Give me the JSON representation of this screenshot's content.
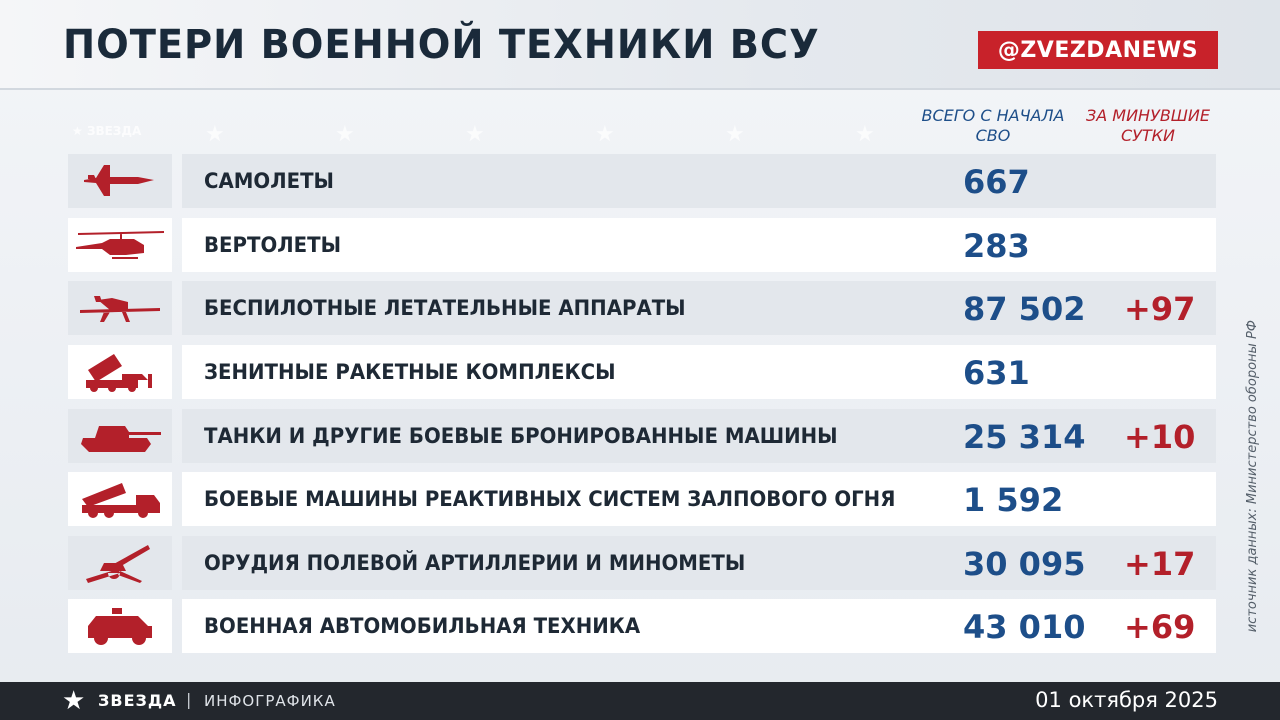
{
  "header": {
    "title": "ПОТЕРИ ВОЕННОЙ ТЕХНИКИ ВСУ",
    "badge": "@ZVEZDANEWS"
  },
  "watermark": "ЗВЕЗДА",
  "columns": {
    "total": "ВСЕГО С НАЧАЛА СВО",
    "daily": "ЗА МИНУВШИЕ СУТКИ"
  },
  "rows": [
    {
      "icon": "aircraft-icon",
      "label": "САМОЛЕТЫ",
      "total": "667",
      "daily": ""
    },
    {
      "icon": "helicopter-icon",
      "label": "ВЕРТОЛЕТЫ",
      "total": "283",
      "daily": ""
    },
    {
      "icon": "drone-icon",
      "label": "БЕСПИЛОТНЫЕ ЛЕТАТЕЛЬНЫЕ АППАРАТЫ",
      "total": "87 502",
      "daily": "+97"
    },
    {
      "icon": "air-defense-icon",
      "label": "ЗЕНИТНЫЕ РАКЕТНЫЕ КОМПЛЕКСЫ",
      "total": "631",
      "daily": ""
    },
    {
      "icon": "tank-icon",
      "label": "ТАНКИ И ДРУГИЕ БОЕВЫЕ БРОНИРОВАННЫЕ МАШИНЫ",
      "total": "25 314",
      "daily": "+10"
    },
    {
      "icon": "rocket-launcher-icon",
      "label": "БОЕВЫЕ МАШИНЫ РЕАКТИВНЫХ СИСТЕМ ЗАЛПОВОГО ОГНЯ",
      "total": "1 592",
      "daily": ""
    },
    {
      "icon": "artillery-icon",
      "label": "ОРУДИЯ ПОЛЕВОЙ АРТИЛЛЕРИИ И МИНОМЕТЫ",
      "total": "30 095",
      "daily": "+17"
    },
    {
      "icon": "military-vehicle-icon",
      "label": "ВОЕННАЯ АВТОМОБИЛЬНАЯ ТЕХНИКА",
      "total": "43 010",
      "daily": "+69"
    }
  ],
  "source": "источник данных: Министерство обороны РФ",
  "footer": {
    "brand": "ЗВЕЗДА",
    "separator": "|",
    "section": "ИНФОГРАФИКА",
    "date": "01 октября 2025"
  },
  "colors": {
    "accent_red": "#c8222a",
    "total_blue": "#1d4e89",
    "daily_red": "#b3202a",
    "footer_bg": "#23272d"
  }
}
